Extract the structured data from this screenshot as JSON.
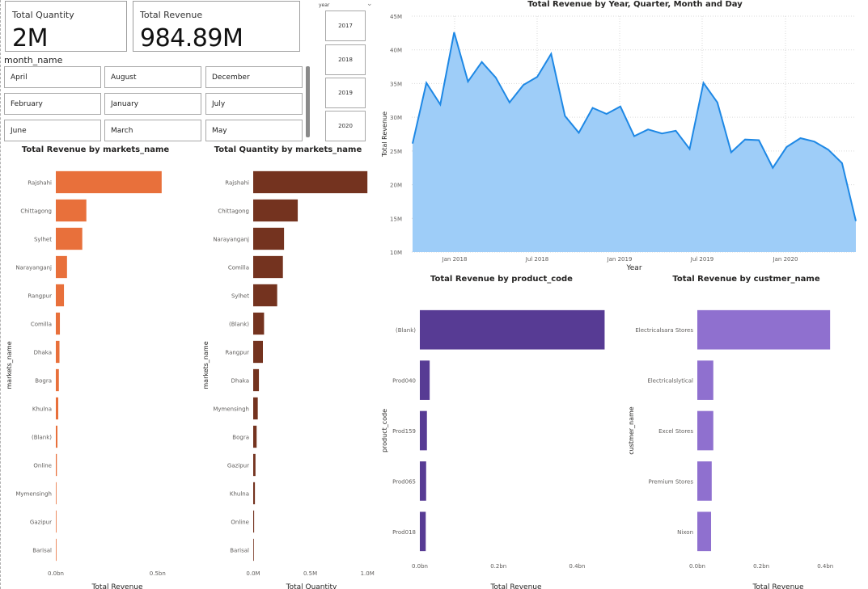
{
  "kpis": {
    "quantity": {
      "label": "Total Quantity",
      "value": "2M"
    },
    "revenue": {
      "label": "Total Revenue",
      "value": "984.89M"
    }
  },
  "month_slicer": {
    "title": "month_name",
    "items": [
      "April",
      "August",
      "December",
      "February",
      "January",
      "July",
      "June",
      "March",
      "May"
    ]
  },
  "year_slicer": {
    "title": "year",
    "items": [
      "2017",
      "2018",
      "2019",
      "2020"
    ]
  },
  "colors": {
    "market_revenue": "#e8703b",
    "market_quantity": "#74331f",
    "product": "#573b94",
    "customer": "#8f70cf",
    "area_fill": "#9ecdf8",
    "area_line": "#1e88e5"
  },
  "chart_data": [
    {
      "id": "line",
      "type": "area",
      "title": "Total Revenue by Year, Quarter, Month and Day",
      "xlabel": "Year",
      "ylabel": "Total Revenue",
      "ylim": [
        10,
        45
      ],
      "yticks": [
        "10M",
        "15M",
        "20M",
        "25M",
        "30M",
        "35M",
        "40M",
        "45M"
      ],
      "xticks": [
        "Jan 2018",
        "Jul 2018",
        "Jan 2019",
        "Jul 2019",
        "Jan 2020"
      ],
      "x": [
        "2017-10",
        "2017-11",
        "2017-12",
        "2018-01",
        "2018-02",
        "2018-03",
        "2018-04",
        "2018-05",
        "2018-06",
        "2018-07",
        "2018-08",
        "2018-09",
        "2018-10",
        "2018-11",
        "2018-12",
        "2019-01",
        "2019-02",
        "2019-03",
        "2019-04",
        "2019-05",
        "2019-06",
        "2019-07",
        "2019-08",
        "2019-09",
        "2019-10",
        "2019-11",
        "2019-12",
        "2020-01",
        "2020-02",
        "2020-03",
        "2020-04",
        "2020-05",
        "2020-06"
      ],
      "values": [
        26.1,
        35.1,
        31.9,
        42.6,
        35.3,
        38.2,
        35.9,
        32.2,
        34.8,
        36.0,
        39.4,
        30.2,
        27.7,
        31.4,
        30.5,
        31.6,
        27.2,
        28.2,
        27.6,
        28.0,
        25.3,
        35.1,
        32.2,
        24.8,
        26.7,
        26.6,
        22.5,
        25.6,
        26.9,
        26.4,
        25.2,
        23.2,
        14.6
      ],
      "grid": true
    },
    {
      "id": "market_revenue",
      "type": "bar",
      "orientation": "horizontal",
      "title": "Total Revenue by markets_name",
      "xlabel": "Total Revenue",
      "ylabel": "markets_name",
      "categories": [
        "Rajshahi",
        "Chittagong",
        "Sylhet",
        "Narayanganj",
        "Rangpur",
        "Comilla",
        "Dhaka",
        "Bogra",
        "Khulna",
        "(Blank)",
        "Online",
        "Mymensingh",
        "Gazipur",
        "Barisal"
      ],
      "values": [
        0.52,
        0.15,
        0.13,
        0.055,
        0.04,
        0.02,
        0.018,
        0.015,
        0.012,
        0.008,
        0.005,
        0.003,
        0.002,
        0.001
      ],
      "xlim": [
        0,
        0.62
      ],
      "xticks": [
        {
          "value": 0,
          "label": "0.0bn"
        },
        {
          "value": 0.5,
          "label": "0.5bn"
        }
      ]
    },
    {
      "id": "market_quantity",
      "type": "bar",
      "orientation": "horizontal",
      "title": "Total Quantity by markets_name",
      "xlabel": "Total Quantity",
      "ylabel": "markets_name",
      "categories": [
        "Rajshahi",
        "Chittagong",
        "Narayanganj",
        "Comilla",
        "Sylhet",
        "(Blank)",
        "Rangpur",
        "Dhaka",
        "Mymensingh",
        "Bogra",
        "Gazipur",
        "Khulna",
        "Online",
        "Barisal"
      ],
      "values": [
        1.0,
        0.39,
        0.27,
        0.26,
        0.21,
        0.095,
        0.085,
        0.05,
        0.04,
        0.03,
        0.02,
        0.015,
        0.008,
        0.005
      ],
      "xlim": [
        0,
        1.02
      ],
      "xticks": [
        {
          "value": 0,
          "label": "0.0M"
        },
        {
          "value": 0.5,
          "label": "0.5M"
        },
        {
          "value": 1.0,
          "label": "1.0M"
        }
      ]
    },
    {
      "id": "product",
      "type": "bar",
      "orientation": "horizontal",
      "title": "Total Revenue by product_code",
      "xlabel": "Total Revenue",
      "ylabel": "product_code",
      "categories": [
        "(Blank)",
        "Prod040",
        "Prod159",
        "Prod065",
        "Prod018"
      ],
      "values": [
        0.47,
        0.025,
        0.018,
        0.016,
        0.015
      ],
      "xlim": [
        0,
        0.5
      ],
      "xticks": [
        {
          "value": 0,
          "label": "0.0bn"
        },
        {
          "value": 0.2,
          "label": "0.2bn"
        },
        {
          "value": 0.4,
          "label": "0.4bn"
        }
      ]
    },
    {
      "id": "customer",
      "type": "bar",
      "orientation": "horizontal",
      "title": "Total Revenue by custmer_name",
      "xlabel": "Total Revenue",
      "ylabel": "custmer_name",
      "categories": [
        "Electricalsara Stores",
        "Electricalslytical",
        "Excel Stores",
        "Premium Stores",
        "Nixon"
      ],
      "values": [
        0.415,
        0.05,
        0.05,
        0.045,
        0.043
      ],
      "xlim": [
        0,
        0.45
      ],
      "xticks": [
        {
          "value": 0,
          "label": "0.0bn"
        },
        {
          "value": 0.2,
          "label": "0.2bn"
        },
        {
          "value": 0.4,
          "label": "0.4bn"
        }
      ]
    }
  ]
}
